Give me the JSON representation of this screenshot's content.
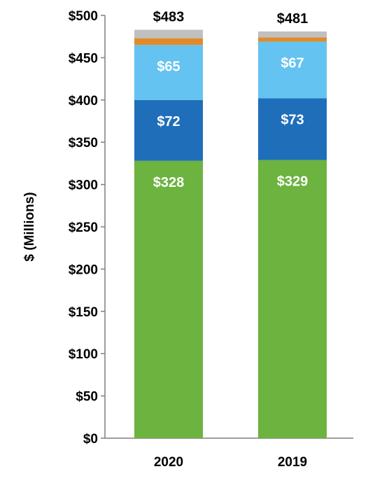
{
  "chart_data": {
    "type": "bar",
    "stacked": true,
    "categories": [
      "2020",
      "2019"
    ],
    "series": [
      {
        "values": [
          328,
          329
        ],
        "color": "#6cb33f",
        "labels": [
          "$328",
          "$329"
        ]
      },
      {
        "values": [
          72,
          73
        ],
        "color": "#1f6eb9",
        "labels": [
          "$72",
          "$73"
        ]
      },
      {
        "values": [
          65,
          67
        ],
        "color": "#64c3f0",
        "labels": [
          "$65",
          "$67"
        ]
      },
      {
        "values": [
          8,
          5
        ],
        "color": "#e08b2b",
        "labels": [
          "",
          ""
        ]
      },
      {
        "values": [
          10,
          7
        ],
        "color": "#c0c0c0",
        "labels": [
          "",
          ""
        ]
      }
    ],
    "totals": [
      483,
      481
    ],
    "total_labels": [
      "$483",
      "$481"
    ],
    "ylabel": "$ (Millions)",
    "ylim": [
      0,
      500
    ],
    "yticks": [
      0,
      50,
      100,
      150,
      200,
      250,
      300,
      350,
      400,
      450,
      500
    ],
    "ytick_labels": [
      "$0",
      "$50",
      "$100",
      "$150",
      "$200",
      "$250",
      "$300",
      "$350",
      "$400",
      "$450",
      "$500"
    ],
    "grid": false,
    "legend": "none"
  }
}
